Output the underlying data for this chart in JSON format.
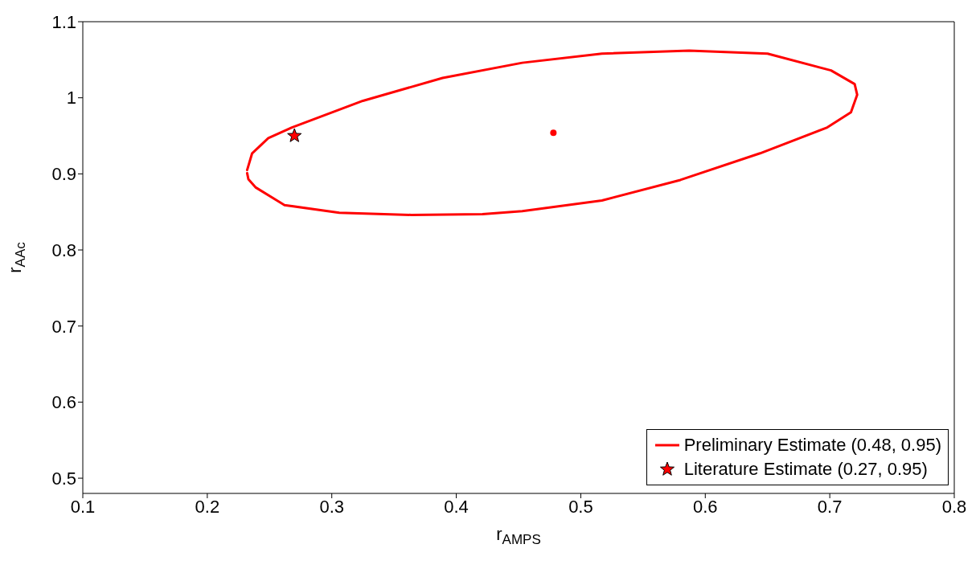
{
  "chart_data": {
    "type": "line",
    "xlabel": "r$_{AMPS}$",
    "ylabel": "r$_{AAc}$",
    "xlim": [
      0.1,
      0.8
    ],
    "xticks": [
      0.1,
      0.2,
      0.3,
      0.4,
      0.5,
      0.6,
      0.7,
      0.8
    ],
    "ylim": [
      0.48,
      1.1
    ],
    "yticks": [
      0.5,
      0.6,
      0.7,
      0.8,
      0.9,
      1,
      1.1
    ],
    "legend": "bottom right",
    "series": [
      {
        "name": "Preliminary Estimate (0.48, 0.95)",
        "color": "#ff0000",
        "marker": "none",
        "x": [
          0.232,
          0.236,
          0.249,
          0.268,
          0.325,
          0.389,
          0.453,
          0.517,
          0.587,
          0.65,
          0.701,
          0.72,
          0.722,
          0.717,
          0.698,
          0.644,
          0.58,
          0.517,
          0.453,
          0.421,
          0.364,
          0.306,
          0.262,
          0.239,
          0.233,
          0.232
        ],
        "values": [
          0.905,
          0.927,
          0.947,
          0.961,
          0.996,
          1.026,
          1.046,
          1.058,
          1.062,
          1.058,
          1.036,
          1.018,
          1.004,
          0.981,
          0.961,
          0.927,
          0.892,
          0.865,
          0.851,
          0.847,
          0.846,
          0.849,
          0.859,
          0.882,
          0.893,
          0.901
        ]
      },
      {
        "type": "scatter",
        "color": "#ff0000",
        "marker": "circle",
        "x": [
          0.478
        ],
        "values": [
          0.954
        ]
      },
      {
        "name": "Literature Estimate (0.27, 0.95)",
        "type": "scatter",
        "color": "#ff0000",
        "marker": "star",
        "x": [
          0.27
        ],
        "values": [
          0.95
        ]
      }
    ]
  }
}
